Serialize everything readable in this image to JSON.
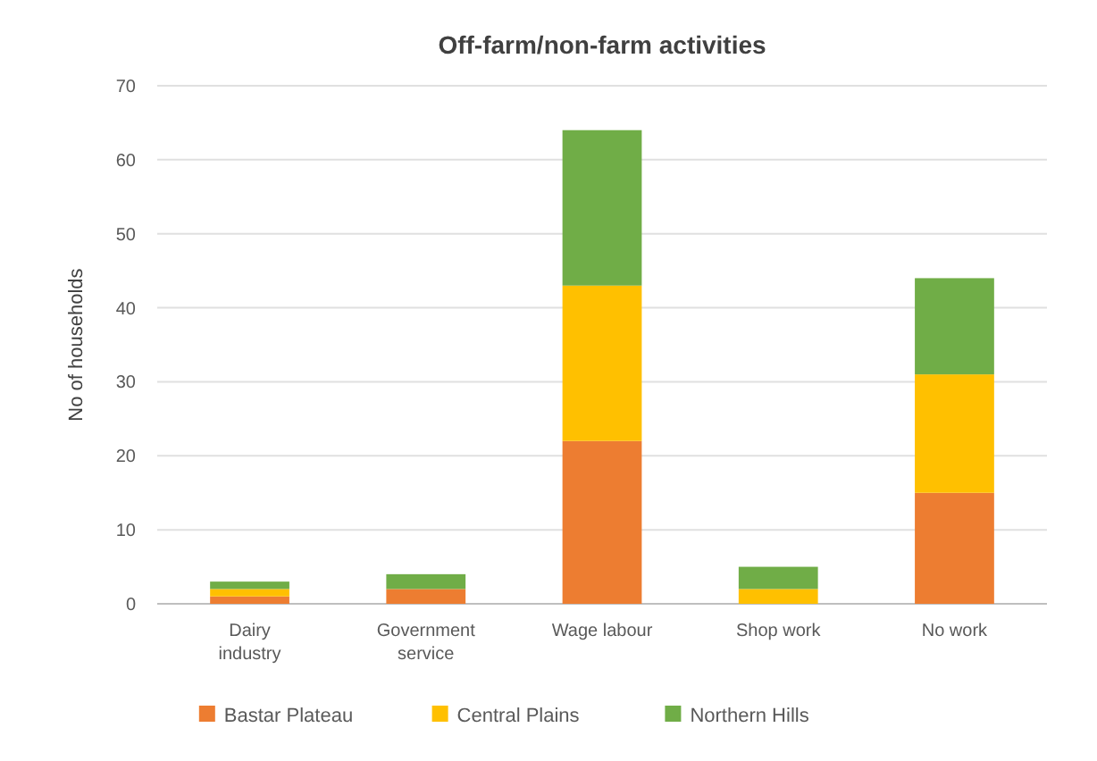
{
  "chart_data": {
    "type": "bar",
    "title": "Off-farm/non-farm activities",
    "ylabel": "No of households",
    "categories": [
      "Dairy industry",
      "Government service",
      "Wage labour",
      "Shop work",
      "No work"
    ],
    "series": [
      {
        "name": "Bastar Plateau",
        "color": "#ed7d31",
        "values": [
          1,
          2,
          22,
          0,
          15
        ]
      },
      {
        "name": "Central Plains",
        "color": "#ffc000",
        "values": [
          1,
          0,
          21,
          2,
          16
        ]
      },
      {
        "name": "Northern Hills",
        "color": "#70ad47",
        "values": [
          1,
          2,
          21,
          3,
          13
        ]
      }
    ],
    "stacked": true,
    "ylim": [
      0,
      70
    ],
    "yticks": [
      0,
      10,
      20,
      30,
      40,
      50,
      60,
      70
    ],
    "grid": "y",
    "legend": "bottom"
  }
}
